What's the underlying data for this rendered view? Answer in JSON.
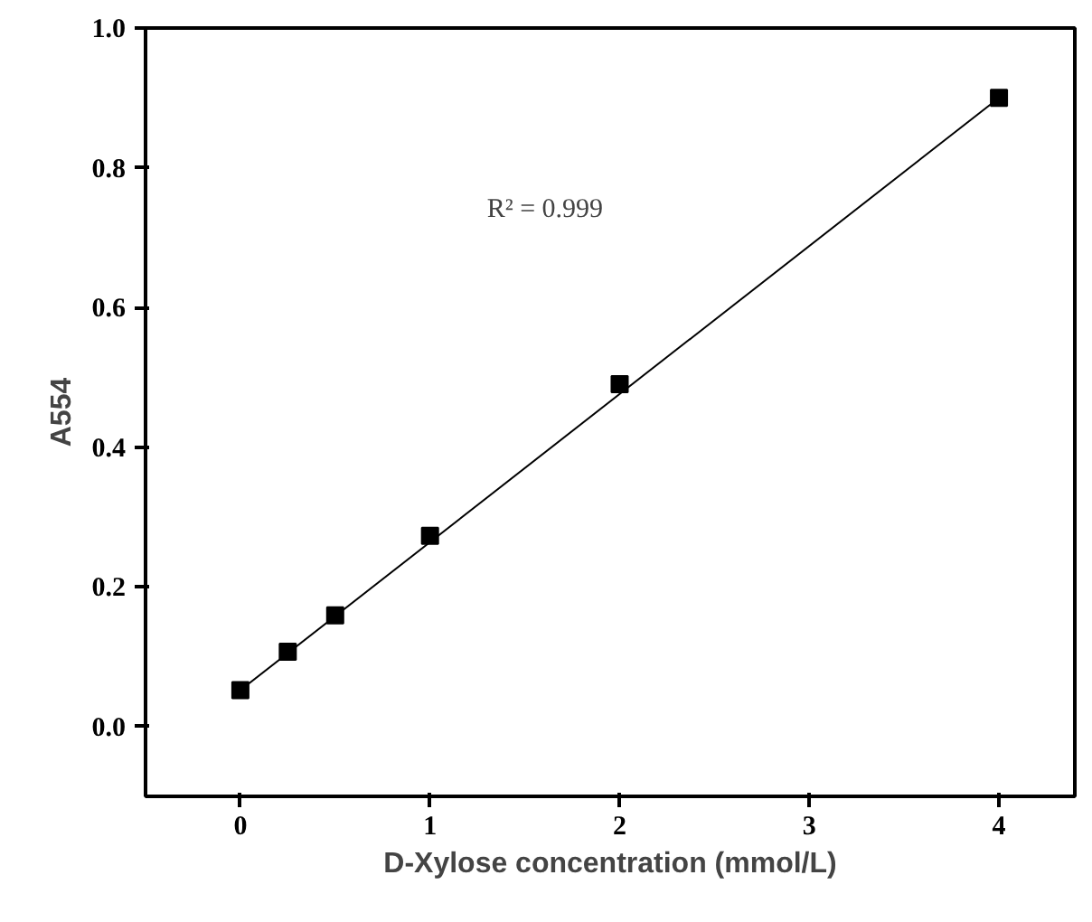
{
  "chart_data": {
    "type": "scatter",
    "xlabel": "D-Xylose concentration (mmol/L)",
    "ylabel": "A554",
    "annotations": [
      "R² = 0.999"
    ],
    "xlim": [
      -0.5,
      4.4
    ],
    "ylim": [
      -0.1,
      1.0
    ],
    "xticks": [
      0,
      1,
      2,
      3,
      4
    ],
    "yticks": [
      {
        "value": 0,
        "label": "0.0"
      },
      {
        "value": 0.2,
        "label": "0.2"
      },
      {
        "value": 0.4,
        "label": "0.4"
      },
      {
        "value": 0.6,
        "label": "0.6"
      },
      {
        "value": 0.8,
        "label": "0.8"
      },
      {
        "value": 1.0,
        "label": "1.0"
      }
    ],
    "grid": false,
    "series": [
      {
        "marker": "square",
        "color": "#000000",
        "x": [
          0,
          0.25,
          0.5,
          1,
          2,
          4
        ],
        "values": [
          0.052,
          0.107,
          0.159,
          0.273,
          0.49,
          0.9
        ]
      },
      {
        "type": "line",
        "marker": "none",
        "color": "#000000",
        "line_style": "solid",
        "x": [
          0,
          4
        ],
        "values": [
          0.052,
          0.9
        ]
      }
    ]
  }
}
